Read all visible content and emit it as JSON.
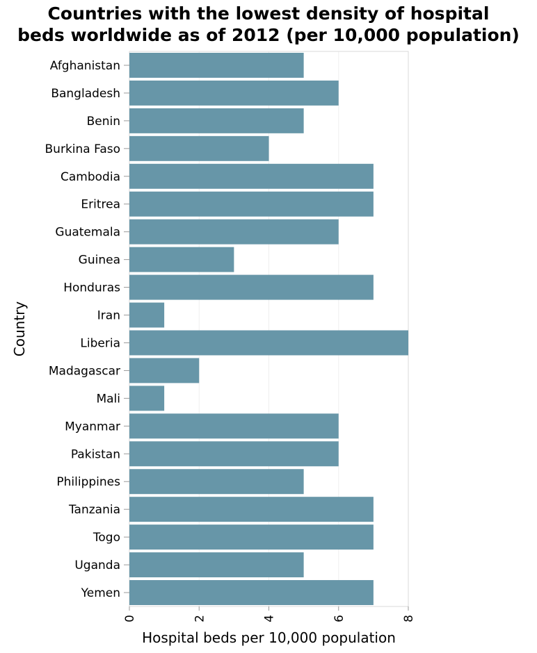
{
  "chart_data": {
    "type": "bar",
    "orientation": "horizontal",
    "title_lines": [
      "Countries with the lowest density of hospital",
      "beds worldwide as of 2012 (per 10,000 population)"
    ],
    "xlabel": "Hospital beds per 10,000 population",
    "ylabel": "Country",
    "xlim": [
      0,
      8
    ],
    "xticks": [
      0,
      2,
      4,
      6,
      8
    ],
    "grid": true,
    "categories": [
      "Afghanistan",
      "Bangladesh",
      "Benin",
      "Burkina Faso",
      "Cambodia",
      "Eritrea",
      "Guatemala",
      "Guinea",
      "Honduras",
      "Iran",
      "Liberia",
      "Madagascar",
      "Mali",
      "Myanmar",
      "Pakistan",
      "Philippines",
      "Tanzania",
      "Togo",
      "Uganda",
      "Yemen"
    ],
    "values": [
      5,
      6,
      5,
      4,
      7,
      7,
      6,
      3,
      7,
      1,
      8,
      2,
      1,
      6,
      6,
      5,
      7,
      7,
      5,
      7
    ],
    "bar_color": "#6796a8"
  }
}
